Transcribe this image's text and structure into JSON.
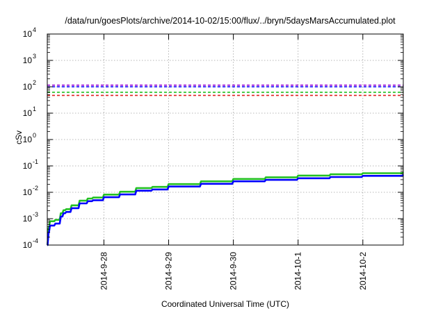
{
  "chart_data": {
    "type": "line",
    "title": "/data/run/goesPlots/archive/2014-10-02/15:00/flux/../bryn/5daysMarsAccumulated.plot",
    "xlabel": "Coordinated Universal Time (UTC)",
    "ylabel": "cSv",
    "y_scale": "log",
    "ylim": [
      0.0001,
      10000
    ],
    "y_ticks": [
      {
        "value": 0.0001,
        "base": "10",
        "exp": "-4"
      },
      {
        "value": 0.001,
        "base": "10",
        "exp": "-3"
      },
      {
        "value": 0.01,
        "base": "10",
        "exp": "-2"
      },
      {
        "value": 0.1,
        "base": "10",
        "exp": "-1"
      },
      {
        "value": 1,
        "base": "10",
        "exp": "0"
      },
      {
        "value": 10,
        "base": "10",
        "exp": "1"
      },
      {
        "value": 100,
        "base": "10",
        "exp": "2"
      },
      {
        "value": 1000,
        "base": "10",
        "exp": "3"
      },
      {
        "value": 10000,
        "base": "10",
        "exp": "4"
      }
    ],
    "xlim": [
      "2014-09-27 03:00",
      "2014-10-02 15:00"
    ],
    "x_ticks": [
      {
        "value": "2014-09-28 00:00",
        "label": "2014-9-28"
      },
      {
        "value": "2014-09-29 00:00",
        "label": "2014-9-29"
      },
      {
        "value": "2014-09-30 00:00",
        "label": "2014-9-30"
      },
      {
        "value": "2014-10-01 00:00",
        "label": "2014-10-1"
      },
      {
        "value": "2014-10-02 00:00",
        "label": "2014-10-2"
      }
    ],
    "grid": true,
    "legend": "none",
    "thresholds": [
      {
        "value": 115,
        "color": "#9400d3",
        "style": "dashed"
      },
      {
        "value": 100,
        "color": "#0000ff",
        "style": "dashed"
      },
      {
        "value": 62,
        "color": "#22c022",
        "style": "dashed"
      },
      {
        "value": 47,
        "color": "#e02020",
        "style": "dashed"
      }
    ],
    "series": [
      {
        "color": "#22c022",
        "x": [
          "2014-09-27 03:00",
          "2014-09-27 03:30",
          "2014-09-27 04:00",
          "2014-09-27 06:00",
          "2014-09-27 08:00",
          "2014-09-27 09:00",
          "2014-09-27 10:00",
          "2014-09-27 12:00",
          "2014-09-27 15:00",
          "2014-09-27 18:00",
          "2014-09-27 20:00",
          "2014-09-28 00:00",
          "2014-09-28 06:00",
          "2014-09-28 12:00",
          "2014-09-28 18:00",
          "2014-09-29 00:00",
          "2014-09-29 12:00",
          "2014-09-30 00:00",
          "2014-09-30 12:00",
          "2014-10-01 00:00",
          "2014-10-01 12:00",
          "2014-10-02 00:00",
          "2014-10-02 15:00"
        ],
        "values": [
          0.0001,
          0.00045,
          0.0008,
          0.0009,
          0.0016,
          0.0021,
          0.0023,
          0.0032,
          0.0048,
          0.0058,
          0.0063,
          0.0082,
          0.0105,
          0.0145,
          0.016,
          0.0205,
          0.026,
          0.032,
          0.037,
          0.043,
          0.048,
          0.053,
          0.058
        ]
      },
      {
        "color": "#0000ff",
        "x": [
          "2014-09-27 03:00",
          "2014-09-27 03:30",
          "2014-09-27 04:00",
          "2014-09-27 06:00",
          "2014-09-27 08:00",
          "2014-09-27 09:00",
          "2014-09-27 10:00",
          "2014-09-27 12:00",
          "2014-09-27 15:00",
          "2014-09-27 18:00",
          "2014-09-27 20:00",
          "2014-09-28 00:00",
          "2014-09-28 06:00",
          "2014-09-28 12:00",
          "2014-09-28 18:00",
          "2014-09-29 00:00",
          "2014-09-29 12:00",
          "2014-09-30 00:00",
          "2014-09-30 12:00",
          "2014-10-01 00:00",
          "2014-10-01 12:00",
          "2014-10-02 00:00",
          "2014-10-02 15:00"
        ],
        "values": [
          0.0001,
          0.0003,
          0.00055,
          0.00065,
          0.0012,
          0.0016,
          0.0018,
          0.0025,
          0.0038,
          0.0046,
          0.005,
          0.0065,
          0.0083,
          0.0115,
          0.0128,
          0.0165,
          0.021,
          0.026,
          0.0295,
          0.034,
          0.038,
          0.042,
          0.046
        ]
      }
    ]
  }
}
